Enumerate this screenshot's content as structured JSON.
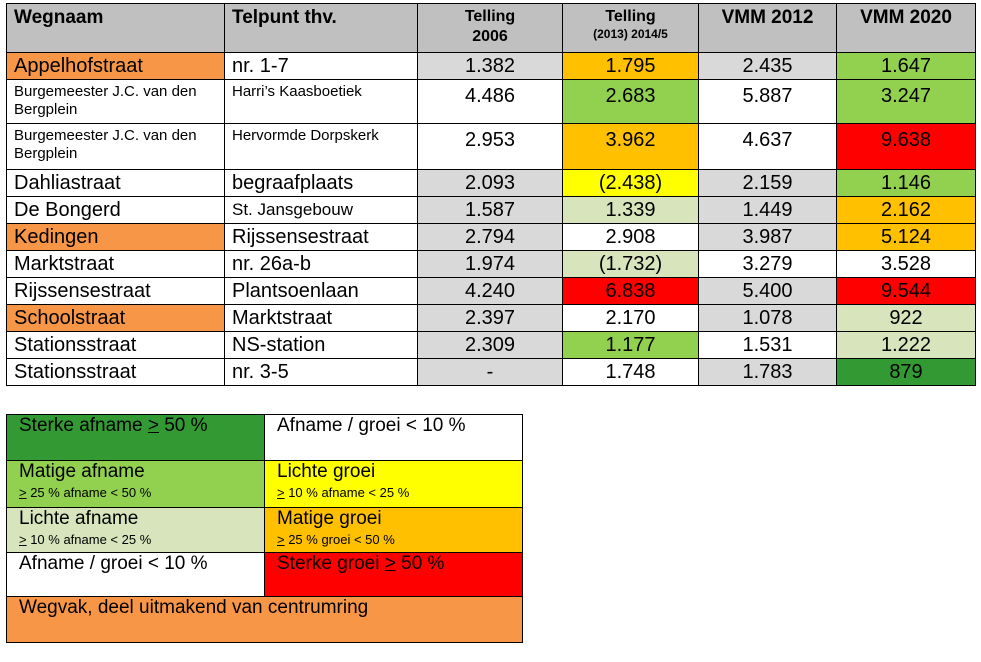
{
  "table": {
    "headers": {
      "wegnaam": "Wegnaam",
      "telpunt": "Telpunt thv.",
      "telling2006_line1": "Telling",
      "telling2006_line2": "2006",
      "telling2014_line1": "Telling",
      "telling2014_line2": "(2013) 2014/5",
      "vmm2012": "VMM 2012",
      "vmm2020": "VMM 2020"
    },
    "rows": [
      {
        "name": "Appelhofstraat",
        "loc": "nr. 1-7",
        "t2006": "1.382",
        "t2014": "1.795",
        "vmm2012": "2.435",
        "vmm2020": "1.647"
      },
      {
        "name": "Burgemeester J.C. van den Bergplein",
        "loc": "Harri’s Kaasboetiek",
        "t2006": "4.486",
        "t2014": "2.683",
        "vmm2012": "5.887",
        "vmm2020": "3.247"
      },
      {
        "name": "Burgemeester J.C. van den Bergplein",
        "loc": "Hervormde Dorpskerk",
        "t2006": "2.953",
        "t2014": "3.962",
        "vmm2012": "4.637",
        "vmm2020": "9.638"
      },
      {
        "name": "Dahliastraat",
        "loc": "begraafplaats",
        "t2006": "2.093",
        "t2014": "(2.438)",
        "vmm2012": "2.159",
        "vmm2020": "1.146"
      },
      {
        "name": "De Bongerd",
        "loc": "St. Jansgebouw",
        "t2006": "1.587",
        "t2014": "1.339",
        "vmm2012": "1.449",
        "vmm2020": "2.162"
      },
      {
        "name": "Kedingen",
        "loc": "Rijssensestraat",
        "t2006": "2.794",
        "t2014": "2.908",
        "vmm2012": "3.987",
        "vmm2020": "5.124"
      },
      {
        "name": "Marktstraat",
        "loc": "nr. 26a-b",
        "t2006": "1.974",
        "t2014": "(1.732)",
        "vmm2012": "3.279",
        "vmm2020": "3.528"
      },
      {
        "name": "Rijssensestraat",
        "loc": "Plantsoenlaan",
        "t2006": "4.240",
        "t2014": "6.838",
        "vmm2012": "5.400",
        "vmm2020": "9.544"
      },
      {
        "name": "Schoolstraat",
        "loc": "Marktstraat",
        "t2006": "2.397",
        "t2014": "2.170",
        "vmm2012": "1.078",
        "vmm2020": "922"
      },
      {
        "name": "Stationsstraat",
        "loc": "NS-station",
        "t2006": "2.309",
        "t2014": "1.177",
        "vmm2012": "1.531",
        "vmm2020": "1.222"
      },
      {
        "name": "Stationsstraat",
        "loc": "nr. 3-5",
        "t2006": "-",
        "t2014": "1.748",
        "vmm2012": "1.783",
        "vmm2020": "879"
      }
    ]
  },
  "legend": {
    "sterke_afname": {
      "label_pre": "Sterke afname ",
      "label_ul": ">",
      "label_post": " 50 %"
    },
    "afname_groei_1": "Afname / groei < 10 %",
    "matige_afname": {
      "label": "Matige afname",
      "sub_ul": ">",
      "sub_post": " 25 % afname < 50 %"
    },
    "lichte_groei": {
      "label": "Lichte groei",
      "sub_ul": ">",
      "sub_post": " 10 % afname <  25 %"
    },
    "lichte_afname": {
      "label": "Lichte afname",
      "sub_ul": ">",
      "sub_post": " 10 % afname <  25 %"
    },
    "matige_groei": {
      "label": "Matige groei",
      "sub_ul": ">",
      "sub_post": " 25 % groei < 50 %"
    },
    "afname_groei_2": "Afname / groei < 10 %",
    "sterke_groei": {
      "label_pre": "Sterke groei ",
      "label_ul": ">",
      "label_post": " 50 %"
    },
    "wegvak": "Wegvak, deel uitmakend van centrumring"
  },
  "colors": {
    "header": "#c0c0c0",
    "gray": "#d9d9d9",
    "orange": "#f79646",
    "amber": "#ffc000",
    "yellow": "#ffff00",
    "light_green": "#d7e4bc",
    "medium_green": "#92d050",
    "dark_green": "#339933",
    "red": "#ff0000"
  }
}
